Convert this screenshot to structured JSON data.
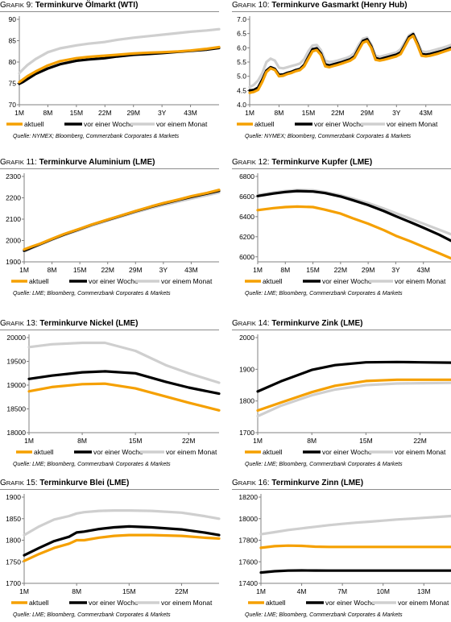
{
  "legend_labels": [
    "aktuell",
    "vor einer Woche",
    "vor einem Monat"
  ],
  "colors": {
    "aktuell": "#f5a000",
    "woche": "#000000",
    "monat": "#cfcfcf",
    "axis": "#808080"
  },
  "chart_data": [
    {
      "type": "line",
      "grafik_prefix": "G",
      "grafik_rest": "RAFIK",
      "grafik_num": "9:",
      "title": "Terminkurve Ölmarkt (WTI)",
      "source": "Quelle: NYMEX; Bloomberg, Commerzbank Corporates & Markets",
      "x_ticks": [
        "1M",
        "8M",
        "15M",
        "22M",
        "29M",
        "3Y",
        "43M"
      ],
      "x_range": [
        1,
        50
      ],
      "x": [
        1,
        2,
        3,
        5,
        8,
        11,
        15,
        18,
        22,
        25,
        29,
        33,
        36,
        40,
        43,
        47,
        50
      ],
      "y_ticks": [
        "70",
        "75",
        "80",
        "85",
        "90"
      ],
      "ylim": [
        70,
        90
      ],
      "series": [
        {
          "name": "aktuell",
          "values": [
            75.3,
            76.0,
            76.7,
            77.8,
            79.2,
            80.2,
            80.9,
            81.2,
            81.5,
            81.7,
            82.0,
            82.2,
            82.3,
            82.5,
            82.7,
            83.1,
            83.5
          ]
        },
        {
          "name": "vor einer Woche",
          "values": [
            74.9,
            75.4,
            76.0,
            77.2,
            78.5,
            79.5,
            80.3,
            80.6,
            80.9,
            81.3,
            81.7,
            81.9,
            82.1,
            82.4,
            82.6,
            82.9,
            83.3
          ]
        },
        {
          "name": "vor einem Monat",
          "values": [
            77.4,
            78.4,
            79.3,
            80.7,
            82.3,
            83.2,
            83.9,
            84.3,
            84.7,
            85.2,
            85.7,
            86.1,
            86.4,
            86.8,
            87.1,
            87.4,
            87.7
          ]
        }
      ]
    },
    {
      "type": "line",
      "grafik_prefix": "G",
      "grafik_rest": "RAFIK",
      "grafik_num": "10:",
      "title": "Terminkurve Gasmarkt (Henry Hub)",
      "source": "Quelle: NYMEX; Bloomberg, Commerzbank Corporates & Markets",
      "x_ticks": [
        "1M",
        "8M",
        "15M",
        "22M",
        "29M",
        "3Y",
        "43M"
      ],
      "x_range": [
        1,
        49
      ],
      "x": [
        1,
        2,
        3,
        4,
        5,
        6,
        7,
        8,
        9,
        10,
        11,
        12,
        13,
        14,
        15,
        16,
        17,
        18,
        19,
        20,
        21,
        22,
        23,
        24,
        25,
        26,
        27,
        28,
        29,
        30,
        31,
        32,
        33,
        34,
        35,
        36,
        37,
        38,
        39,
        40,
        41,
        42,
        43,
        44,
        45,
        46,
        47,
        48,
        49
      ],
      "y_ticks": [
        "4.0",
        "4.5",
        "5.0",
        "5.5",
        "6.0",
        "6.5",
        "7.0"
      ],
      "ylim": [
        4.0,
        7.0
      ],
      "series": [
        {
          "name": "aktuell",
          "values": [
            4.42,
            4.45,
            4.52,
            4.8,
            5.15,
            5.28,
            5.22,
            5.0,
            5.02,
            5.08,
            5.12,
            5.18,
            5.22,
            5.35,
            5.62,
            5.88,
            5.92,
            5.75,
            5.35,
            5.32,
            5.36,
            5.4,
            5.45,
            5.5,
            5.55,
            5.65,
            5.92,
            6.18,
            6.24,
            6.0,
            5.58,
            5.55,
            5.58,
            5.62,
            5.66,
            5.7,
            5.78,
            6.05,
            6.32,
            6.42,
            6.1,
            5.72,
            5.7,
            5.72,
            5.76,
            5.8,
            5.85,
            5.9,
            5.95
          ]
        },
        {
          "name": "vor einer Woche",
          "values": [
            4.5,
            4.52,
            4.6,
            4.88,
            5.2,
            5.32,
            5.26,
            5.05,
            5.06,
            5.12,
            5.16,
            5.22,
            5.26,
            5.4,
            5.68,
            5.95,
            5.98,
            5.8,
            5.42,
            5.38,
            5.42,
            5.46,
            5.5,
            5.55,
            5.6,
            5.7,
            5.98,
            6.24,
            6.3,
            6.05,
            5.64,
            5.6,
            5.64,
            5.68,
            5.72,
            5.76,
            5.84,
            6.1,
            6.38,
            6.48,
            6.15,
            5.78,
            5.76,
            5.78,
            5.82,
            5.86,
            5.9,
            5.95,
            6.0
          ]
        },
        {
          "name": "vor einem Monat",
          "values": [
            4.62,
            4.7,
            4.85,
            5.1,
            5.5,
            5.62,
            5.55,
            5.3,
            5.28,
            5.32,
            5.36,
            5.4,
            5.45,
            5.6,
            5.88,
            6.08,
            6.1,
            5.92,
            5.55,
            5.5,
            5.52,
            5.55,
            5.6,
            5.64,
            5.7,
            5.82,
            6.1,
            6.32,
            6.36,
            6.12,
            5.72,
            5.68,
            5.72,
            5.76,
            5.8,
            5.84,
            5.95,
            6.2,
            6.44,
            6.52,
            6.22,
            5.88,
            5.85,
            5.88,
            5.92,
            5.96,
            6.0,
            6.05,
            6.1
          ]
        }
      ]
    },
    {
      "type": "line",
      "grafik_prefix": "G",
      "grafik_rest": "RAFIK",
      "grafik_num": "11:",
      "title": "Terminkurve Aluminium (LME)",
      "source": "Quelle: LME; Bloomberg, Commerzbank Corporates & Markets",
      "x_ticks": [
        "1M",
        "8M",
        "15M",
        "22M",
        "29M",
        "3Y",
        "43M"
      ],
      "x_range": [
        1,
        50
      ],
      "x": [
        1,
        2,
        3,
        5,
        8,
        11,
        15,
        18,
        22,
        25,
        29,
        33,
        36,
        40,
        43,
        47,
        50
      ],
      "y_ticks": [
        "1900",
        "2000",
        "2100",
        "2200",
        "2300"
      ],
      "ylim": [
        1900,
        2300
      ],
      "series": [
        {
          "name": "aktuell",
          "values": [
            1958,
            1965,
            1972,
            1985,
            2008,
            2030,
            2055,
            2075,
            2098,
            2115,
            2138,
            2160,
            2175,
            2193,
            2207,
            2223,
            2237
          ]
        },
        {
          "name": "vor einer Woche",
          "values": [
            1952,
            1960,
            1968,
            1983,
            2006,
            2028,
            2054,
            2074,
            2097,
            2114,
            2137,
            2158,
            2173,
            2191,
            2204,
            2220,
            2233
          ]
        },
        {
          "name": "vor einem Monat",
          "values": [
            1948,
            1956,
            1965,
            1980,
            2003,
            2025,
            2050,
            2070,
            2093,
            2110,
            2132,
            2152,
            2166,
            2183,
            2196,
            2212,
            2225
          ]
        }
      ]
    },
    {
      "type": "line",
      "grafik_prefix": "G",
      "grafik_rest": "RAFIK",
      "grafik_num": "12:",
      "title": "Terminkurve Kupfer (LME)",
      "source": "Quelle: LME; Bloomberg, Commerzbank Corporates & Markets",
      "x_ticks": [
        "1M",
        "8M",
        "15M",
        "22M",
        "29M",
        "3Y",
        "43M"
      ],
      "x_range": [
        1,
        50
      ],
      "x": [
        1,
        5,
        8,
        11,
        15,
        18,
        22,
        25,
        29,
        33,
        36,
        40,
        43,
        47,
        50
      ],
      "y_ticks": [
        "6000",
        "6200",
        "6400",
        "6600",
        "6800"
      ],
      "ylim": [
        5950,
        6800
      ],
      "series": [
        {
          "name": "aktuell",
          "values": [
            6465,
            6485,
            6495,
            6500,
            6495,
            6470,
            6430,
            6385,
            6330,
            6265,
            6210,
            6150,
            6100,
            6035,
            5985
          ]
        },
        {
          "name": "vor einer Woche",
          "values": [
            6605,
            6630,
            6645,
            6655,
            6650,
            6635,
            6600,
            6565,
            6515,
            6455,
            6405,
            6340,
            6290,
            6220,
            6160
          ]
        },
        {
          "name": "vor einem Monat",
          "values": [
            6615,
            6640,
            6655,
            6665,
            6662,
            6645,
            6612,
            6580,
            6535,
            6480,
            6435,
            6375,
            6330,
            6270,
            6225
          ]
        }
      ]
    },
    {
      "type": "line",
      "grafik_prefix": "G",
      "grafik_rest": "RAFIK",
      "grafik_num": "13:",
      "title": "Terminkurve Nickel (LME)",
      "source": "Quelle: LME; Bloomberg, Commerzbank Corporates & Markets",
      "x_ticks": [
        "1M",
        "8M",
        "15M",
        "22M"
      ],
      "x_range": [
        1,
        26
      ],
      "x": [
        1,
        4,
        8,
        11,
        15,
        19,
        22,
        26
      ],
      "y_ticks": [
        "18000",
        "18500",
        "19000",
        "19500",
        "20000"
      ],
      "ylim": [
        18000,
        20000
      ],
      "series": [
        {
          "name": "aktuell",
          "values": [
            18870,
            18960,
            19020,
            19030,
            18930,
            18760,
            18630,
            18470
          ]
        },
        {
          "name": "vor einer Woche",
          "values": [
            19130,
            19200,
            19270,
            19290,
            19250,
            19070,
            18950,
            18820
          ]
        },
        {
          "name": "vor einem Monat",
          "values": [
            19800,
            19860,
            19890,
            19890,
            19720,
            19420,
            19250,
            19050
          ]
        }
      ]
    },
    {
      "type": "line",
      "grafik_prefix": "G",
      "grafik_rest": "RAFIK",
      "grafik_num": "14:",
      "title": "Terminkurve Zink (LME)",
      "source": "Quelle: LME; Bloomberg, Commerzbank Corporates & Markets",
      "x_ticks": [
        "1M",
        "8M",
        "15M",
        "22M"
      ],
      "x_range": [
        1,
        26
      ],
      "x": [
        1,
        4,
        8,
        11,
        15,
        19,
        22,
        26
      ],
      "y_ticks": [
        "1700",
        "1800",
        "1900",
        "2000"
      ],
      "ylim": [
        1700,
        2000
      ],
      "series": [
        {
          "name": "aktuell",
          "values": [
            1770,
            1795,
            1828,
            1848,
            1863,
            1867,
            1867,
            1867
          ]
        },
        {
          "name": "vor einer Woche",
          "values": [
            1830,
            1862,
            1898,
            1913,
            1922,
            1923,
            1922,
            1921
          ]
        },
        {
          "name": "vor einem Monat",
          "values": [
            1752,
            1785,
            1818,
            1836,
            1850,
            1855,
            1856,
            1857
          ]
        }
      ]
    },
    {
      "type": "line",
      "grafik_prefix": "G",
      "grafik_rest": "RAFIK",
      "grafik_num": "15:",
      "title": "Terminkurve Blei (LME)",
      "source": "Quelle: LME; Bloomberg, Commerzbank Corporates & Markets",
      "x_ticks": [
        "1M",
        "8M",
        "15M",
        "22M"
      ],
      "x_range": [
        1,
        27
      ],
      "x": [
        1,
        3,
        5,
        7,
        8,
        9,
        11,
        13,
        15,
        18,
        22,
        25,
        27
      ],
      "y_ticks": [
        "1700",
        "1750",
        "1800",
        "1850",
        "1900"
      ],
      "ylim": [
        1700,
        1900
      ],
      "series": [
        {
          "name": "aktuell",
          "values": [
            1752,
            1768,
            1782,
            1792,
            1800,
            1800,
            1806,
            1810,
            1812,
            1812,
            1810,
            1806,
            1804
          ]
        },
        {
          "name": "vor einer Woche",
          "values": [
            1765,
            1782,
            1798,
            1808,
            1818,
            1820,
            1826,
            1830,
            1832,
            1830,
            1825,
            1818,
            1812
          ]
        },
        {
          "name": "vor einem Monat",
          "values": [
            1812,
            1832,
            1848,
            1856,
            1862,
            1865,
            1868,
            1869,
            1869,
            1868,
            1864,
            1856,
            1850
          ]
        }
      ]
    },
    {
      "type": "line",
      "grafik_prefix": "G",
      "grafik_rest": "RAFIK",
      "grafik_num": "16:",
      "title": "Terminkurve Zinn (LME)",
      "source": "Quelle: LME; Bloomberg, Commerzbank Corporates & Markets",
      "x_ticks": [
        "1M",
        "4M",
        "7M",
        "10M",
        "13M"
      ],
      "x_range": [
        1,
        15
      ],
      "x": [
        1,
        2,
        3,
        4,
        5,
        6,
        7,
        8,
        9,
        10,
        11,
        12,
        13,
        14,
        15
      ],
      "y_ticks": [
        "17400",
        "17600",
        "17800",
        "18000",
        "18200"
      ],
      "ylim": [
        17400,
        18200
      ],
      "series": [
        {
          "name": "aktuell",
          "values": [
            17730,
            17745,
            17750,
            17748,
            17740,
            17738,
            17738,
            17738,
            17738,
            17738,
            17738,
            17738,
            17738,
            17738,
            17738
          ]
        },
        {
          "name": "vor einer Woche",
          "values": [
            17500,
            17512,
            17518,
            17520,
            17519,
            17518,
            17518,
            17518,
            17518,
            17518,
            17518,
            17518,
            17518,
            17518,
            17518
          ]
        },
        {
          "name": "vor einem Monat",
          "values": [
            17855,
            17875,
            17895,
            17910,
            17925,
            17940,
            17952,
            17963,
            17972,
            17982,
            17992,
            18000,
            18008,
            18016,
            18024
          ]
        }
      ]
    }
  ]
}
